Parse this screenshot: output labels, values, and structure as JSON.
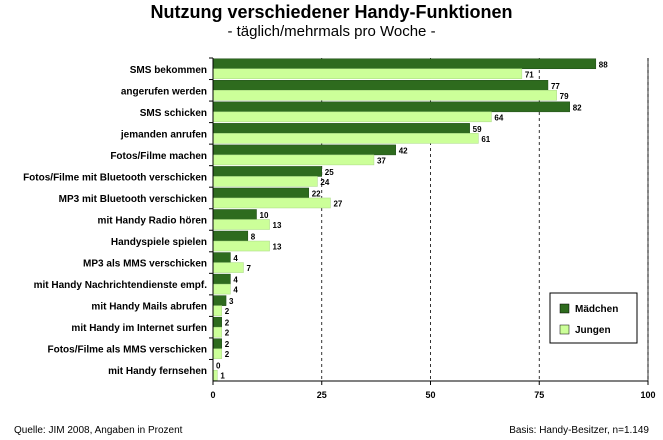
{
  "title": "Nutzung verschiedener Handy-Funktionen",
  "subtitle": "- täglich/mehrmals pro Woche -",
  "footer": {
    "source": "Quelle: JIM 2008, Angaben in Prozent",
    "basis": "Basis: Handy-Besitzer, n=1.149"
  },
  "colors": {
    "maedchen": "#2e6b1e",
    "jungen": "#ccff99"
  },
  "chart_data": {
    "type": "bar",
    "orientation": "horizontal",
    "categories": [
      "SMS bekommen",
      "angerufen werden",
      "SMS schicken",
      "jemanden anrufen",
      "Fotos/Filme machen",
      "Fotos/Filme mit Bluetooth verschicken",
      "MP3 mit Bluetooth verschicken",
      "mit Handy Radio hören",
      "Handyspiele spielen",
      "MP3 als MMS verschicken",
      "mit Handy Nachrichtendienste empf.",
      "mit Handy Mails abrufen",
      "mit Handy im Internet surfen",
      "Fotos/Filme als MMS verschicken",
      "mit Handy fernsehen"
    ],
    "series": [
      {
        "name": "Mädchen",
        "values": [
          88,
          77,
          82,
          59,
          42,
          25,
          22,
          10,
          8,
          4,
          4,
          3,
          2,
          2,
          0
        ]
      },
      {
        "name": "Jungen",
        "values": [
          71,
          79,
          64,
          61,
          37,
          24,
          27,
          13,
          13,
          7,
          4,
          2,
          2,
          2,
          1
        ]
      }
    ],
    "xlim": [
      0,
      100
    ],
    "xticks": [
      0,
      25,
      50,
      75,
      100
    ],
    "grid": "vertical dashed",
    "legend_position": "bottom-right"
  }
}
